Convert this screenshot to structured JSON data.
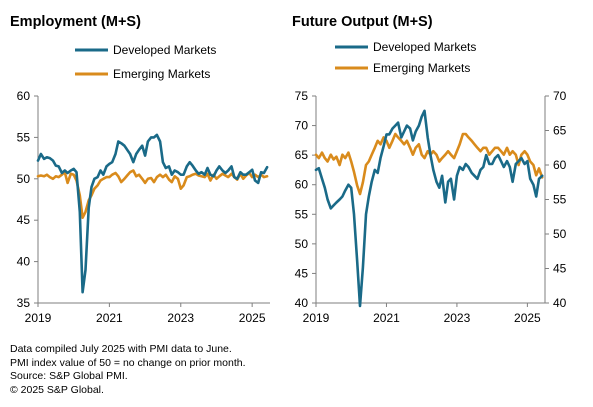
{
  "colors": {
    "developed": "#1a6a88",
    "emerging": "#d98b1c",
    "axis": "#7f7f7f"
  },
  "footnotes": {
    "line1": "Data compiled July 2025 with PMI data to June.",
    "line2": "PMI index value of 50 = no change on prior month.",
    "line3": "Source: S&P Global PMI.",
    "line4": "© 2025 S&P Global."
  },
  "chart_data": [
    {
      "type": "line",
      "title": "Employment (M+S)",
      "legend_placement": "top",
      "xlabel": "",
      "ylabel": "",
      "x_ticks": [
        "2019",
        "2021",
        "2023",
        "2025"
      ],
      "x_range": [
        2019.0,
        2025.5
      ],
      "y_range": [
        35,
        60
      ],
      "y_ticks": [
        35,
        40,
        45,
        50,
        55,
        60
      ],
      "grid": false,
      "series": [
        {
          "name": "Developed Markets",
          "color": "#1a6a88",
          "x": [
            2019.0,
            2019.08,
            2019.17,
            2019.25,
            2019.33,
            2019.42,
            2019.5,
            2019.58,
            2019.67,
            2019.75,
            2019.83,
            2019.92,
            2020.0,
            2020.08,
            2020.17,
            2020.25,
            2020.33,
            2020.42,
            2020.5,
            2020.58,
            2020.67,
            2020.75,
            2020.83,
            2020.92,
            2021.0,
            2021.08,
            2021.17,
            2021.25,
            2021.33,
            2021.42,
            2021.5,
            2021.58,
            2021.67,
            2021.75,
            2021.83,
            2021.92,
            2022.0,
            2022.08,
            2022.17,
            2022.25,
            2022.33,
            2022.42,
            2022.5,
            2022.58,
            2022.67,
            2022.75,
            2022.83,
            2022.92,
            2023.0,
            2023.08,
            2023.17,
            2023.25,
            2023.33,
            2023.42,
            2023.5,
            2023.58,
            2023.67,
            2023.75,
            2023.83,
            2023.92,
            2024.0,
            2024.08,
            2024.17,
            2024.25,
            2024.33,
            2024.42,
            2024.5,
            2024.58,
            2024.67,
            2024.75,
            2024.83,
            2024.92,
            2025.0,
            2025.08,
            2025.17,
            2025.25,
            2025.33,
            2025.42
          ],
          "values": [
            52.2,
            53.0,
            52.4,
            52.6,
            52.5,
            52.2,
            51.6,
            51.5,
            50.7,
            51.0,
            50.7,
            51.0,
            51.2,
            50.8,
            46.0,
            36.3,
            39.0,
            46.5,
            49.0,
            50.0,
            50.2,
            51.0,
            50.5,
            51.5,
            51.8,
            52.0,
            53.0,
            54.5,
            54.3,
            54.0,
            53.5,
            53.0,
            52.0,
            53.0,
            53.5,
            54.0,
            52.8,
            54.5,
            55.0,
            55.0,
            55.3,
            54.5,
            52.0,
            51.3,
            51.5,
            50.5,
            51.0,
            50.8,
            50.5,
            50.5,
            51.5,
            52.0,
            51.6,
            51.0,
            50.6,
            50.8,
            50.5,
            51.3,
            50.5,
            50.3,
            51.0,
            51.5,
            51.0,
            50.7,
            51.0,
            51.5,
            50.2,
            50.0,
            50.8,
            50.5,
            50.5,
            50.8,
            51.1,
            49.8,
            49.5,
            50.8,
            50.7,
            51.4
          ]
        },
        {
          "name": "Emerging Markets",
          "color": "#d98b1c",
          "x": [
            2019.0,
            2019.08,
            2019.17,
            2019.25,
            2019.33,
            2019.42,
            2019.5,
            2019.58,
            2019.67,
            2019.75,
            2019.83,
            2019.92,
            2020.0,
            2020.08,
            2020.17,
            2020.25,
            2020.33,
            2020.42,
            2020.5,
            2020.58,
            2020.67,
            2020.75,
            2020.83,
            2020.92,
            2021.0,
            2021.08,
            2021.17,
            2021.25,
            2021.33,
            2021.42,
            2021.5,
            2021.58,
            2021.67,
            2021.75,
            2021.83,
            2021.92,
            2022.0,
            2022.08,
            2022.17,
            2022.25,
            2022.33,
            2022.42,
            2022.5,
            2022.58,
            2022.67,
            2022.75,
            2022.83,
            2022.92,
            2023.0,
            2023.08,
            2023.17,
            2023.25,
            2023.33,
            2023.42,
            2023.5,
            2023.58,
            2023.67,
            2023.75,
            2023.83,
            2023.92,
            2024.0,
            2024.08,
            2024.17,
            2024.25,
            2024.33,
            2024.42,
            2024.5,
            2024.58,
            2024.67,
            2024.75,
            2024.83,
            2024.92,
            2025.0,
            2025.08,
            2025.17,
            2025.25,
            2025.33,
            2025.42
          ],
          "values": [
            50.3,
            50.4,
            50.3,
            50.5,
            50.2,
            50.0,
            50.3,
            50.2,
            50.5,
            50.8,
            49.5,
            50.6,
            50.5,
            49.8,
            48.0,
            45.3,
            46.0,
            47.4,
            48.0,
            48.8,
            49.2,
            49.8,
            50.0,
            50.2,
            50.2,
            50.5,
            50.7,
            50.3,
            49.6,
            50.0,
            50.4,
            50.8,
            51.0,
            50.3,
            50.5,
            50.0,
            49.5,
            50.0,
            50.1,
            49.6,
            50.2,
            50.5,
            50.2,
            50.5,
            49.9,
            49.6,
            50.3,
            50.0,
            48.8,
            49.2,
            50.2,
            50.3,
            50.5,
            50.6,
            50.4,
            50.3,
            50.2,
            50.6,
            49.8,
            50.5,
            50.0,
            50.3,
            50.6,
            50.4,
            50.2,
            50.6,
            50.2,
            49.9,
            50.6,
            50.0,
            50.4,
            50.7,
            50.2,
            50.5,
            50.2,
            50.5,
            50.2,
            50.3
          ]
        }
      ]
    },
    {
      "type": "line",
      "title": "Future Output (M+S)",
      "legend_placement": "top",
      "xlabel": "",
      "ylabel": "",
      "x_ticks": [
        "2019",
        "2021",
        "2023",
        "2025"
      ],
      "x_range": [
        2019.0,
        2025.5
      ],
      "y_range_left": [
        40,
        75
      ],
      "y_ticks_left": [
        40,
        45,
        50,
        55,
        60,
        65,
        70,
        75
      ],
      "y_range_right": [
        40,
        70
      ],
      "y_ticks_right": [
        40,
        45,
        50,
        55,
        60,
        65,
        70
      ],
      "grid": false,
      "series": [
        {
          "name": "Developed Markets",
          "axis": "left",
          "color": "#1a6a88",
          "x": [
            2019.0,
            2019.08,
            2019.17,
            2019.25,
            2019.33,
            2019.42,
            2019.5,
            2019.58,
            2019.67,
            2019.75,
            2019.83,
            2019.92,
            2020.0,
            2020.08,
            2020.17,
            2020.25,
            2020.33,
            2020.42,
            2020.5,
            2020.58,
            2020.67,
            2020.75,
            2020.83,
            2020.92,
            2021.0,
            2021.08,
            2021.17,
            2021.25,
            2021.33,
            2021.42,
            2021.5,
            2021.58,
            2021.67,
            2021.75,
            2021.83,
            2021.92,
            2022.0,
            2022.08,
            2022.17,
            2022.25,
            2022.33,
            2022.42,
            2022.5,
            2022.58,
            2022.67,
            2022.75,
            2022.83,
            2022.92,
            2023.0,
            2023.08,
            2023.17,
            2023.25,
            2023.33,
            2023.42,
            2023.5,
            2023.58,
            2023.67,
            2023.75,
            2023.83,
            2023.92,
            2024.0,
            2024.08,
            2024.17,
            2024.25,
            2024.33,
            2024.42,
            2024.5,
            2024.58,
            2024.67,
            2024.75,
            2024.83,
            2024.92,
            2025.0,
            2025.08,
            2025.17,
            2025.25,
            2025.33,
            2025.42
          ],
          "values": [
            62.5,
            62.8,
            61.0,
            59.5,
            57.5,
            56.0,
            56.5,
            57.0,
            57.5,
            58.0,
            59.0,
            60.0,
            59.5,
            55.0,
            47.0,
            39.5,
            46.0,
            55.0,
            58.0,
            60.5,
            62.5,
            62.0,
            64.5,
            66.5,
            68.5,
            68.5,
            69.5,
            70.0,
            70.5,
            68.0,
            69.0,
            70.0,
            69.5,
            67.5,
            69.0,
            70.0,
            71.5,
            72.5,
            68.0,
            65.0,
            62.5,
            60.5,
            59.5,
            61.5,
            57.0,
            60.5,
            61.0,
            57.5,
            61.5,
            63.0,
            62.5,
            63.5,
            63.0,
            62.0,
            61.5,
            61.0,
            62.5,
            63.0,
            65.0,
            63.5,
            63.5,
            64.5,
            65.0,
            64.0,
            63.0,
            64.0,
            63.0,
            60.5,
            63.5,
            64.0,
            64.5,
            63.5,
            64.0,
            61.0,
            60.0,
            58.0,
            61.0,
            61.5
          ]
        },
        {
          "name": "Emerging Markets",
          "axis": "right",
          "color": "#d98b1c",
          "x": [
            2019.0,
            2019.08,
            2019.17,
            2019.25,
            2019.33,
            2019.42,
            2019.5,
            2019.58,
            2019.67,
            2019.75,
            2019.83,
            2019.92,
            2020.0,
            2020.08,
            2020.17,
            2020.25,
            2020.33,
            2020.42,
            2020.5,
            2020.58,
            2020.67,
            2020.75,
            2020.83,
            2020.92,
            2021.0,
            2021.08,
            2021.17,
            2021.25,
            2021.33,
            2021.42,
            2021.5,
            2021.58,
            2021.67,
            2021.75,
            2021.83,
            2021.92,
            2022.0,
            2022.08,
            2022.17,
            2022.25,
            2022.33,
            2022.42,
            2022.5,
            2022.58,
            2022.67,
            2022.75,
            2022.83,
            2022.92,
            2023.0,
            2023.08,
            2023.17,
            2023.25,
            2023.33,
            2023.42,
            2023.5,
            2023.58,
            2023.67,
            2023.75,
            2023.83,
            2023.92,
            2024.0,
            2024.08,
            2024.17,
            2024.25,
            2024.33,
            2024.42,
            2024.5,
            2024.58,
            2024.67,
            2024.75,
            2024.83,
            2024.92,
            2025.0,
            2025.08,
            2025.17,
            2025.25,
            2025.33,
            2025.42
          ],
          "values": [
            61.5,
            61.0,
            61.8,
            61.0,
            60.5,
            61.5,
            60.8,
            61.2,
            60.0,
            61.5,
            61.0,
            61.8,
            60.5,
            59.0,
            57.0,
            55.8,
            57.5,
            60.0,
            60.5,
            61.5,
            62.5,
            63.5,
            63.0,
            64.0,
            63.5,
            62.5,
            63.5,
            64.5,
            64.0,
            63.5,
            63.0,
            63.5,
            62.5,
            61.5,
            62.5,
            63.0,
            61.5,
            61.0,
            62.0,
            61.5,
            62.0,
            61.5,
            60.5,
            61.0,
            61.5,
            62.0,
            61.5,
            61.0,
            62.0,
            63.0,
            64.5,
            64.5,
            64.0,
            63.5,
            63.0,
            62.5,
            62.0,
            62.5,
            62.5,
            61.5,
            62.0,
            62.5,
            62.5,
            62.0,
            61.5,
            62.5,
            61.5,
            62.0,
            61.5,
            60.0,
            61.5,
            62.0,
            61.5,
            60.5,
            60.0,
            58.5,
            59.5,
            58.2
          ]
        }
      ]
    }
  ]
}
